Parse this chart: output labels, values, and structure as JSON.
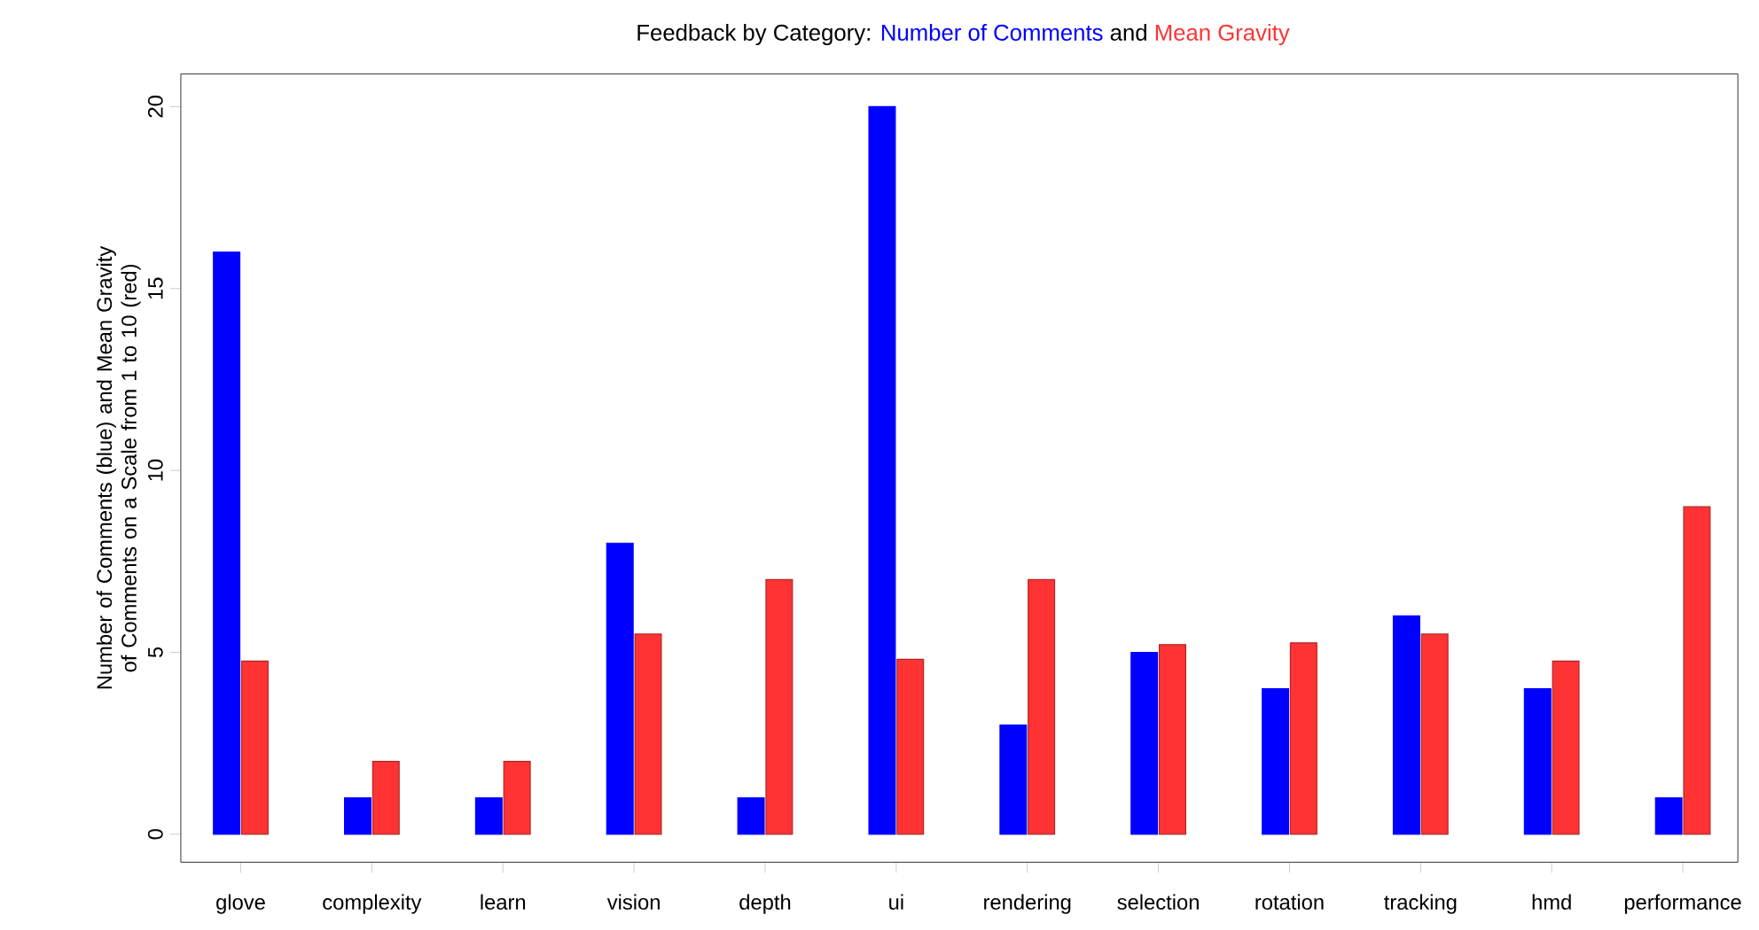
{
  "chart_data": {
    "type": "bar",
    "title": "Feedback by Category:",
    "ylabel": "Number of Comments (blue) and Mean Gravity of Comments on a Scale from 1 to 10 (red)",
    "annotations": [
      "and"
    ],
    "categories": [
      "glove",
      "complexity",
      "learn",
      "vision",
      "depth",
      "ui",
      "rendering",
      "selection",
      "rotation",
      "tracking",
      "hmd",
      "performance"
    ],
    "series": [
      {
        "name": "Number of Comments",
        "color": "#0000ff",
        "values": [
          16,
          1,
          1,
          8,
          1,
          20,
          3,
          5,
          4,
          6,
          4,
          1
        ]
      },
      {
        "name": "Mean Gravity",
        "color": "#ff3333",
        "values": [
          4.76,
          2,
          2,
          5.5,
          7,
          4.81,
          7,
          5.21,
          5.26,
          5.5,
          4.76,
          9
        ]
      }
    ],
    "ylim": [
      -0.77,
      20.9
    ],
    "yticks": [
      0,
      5,
      10,
      15,
      20
    ],
    "grid": false
  }
}
